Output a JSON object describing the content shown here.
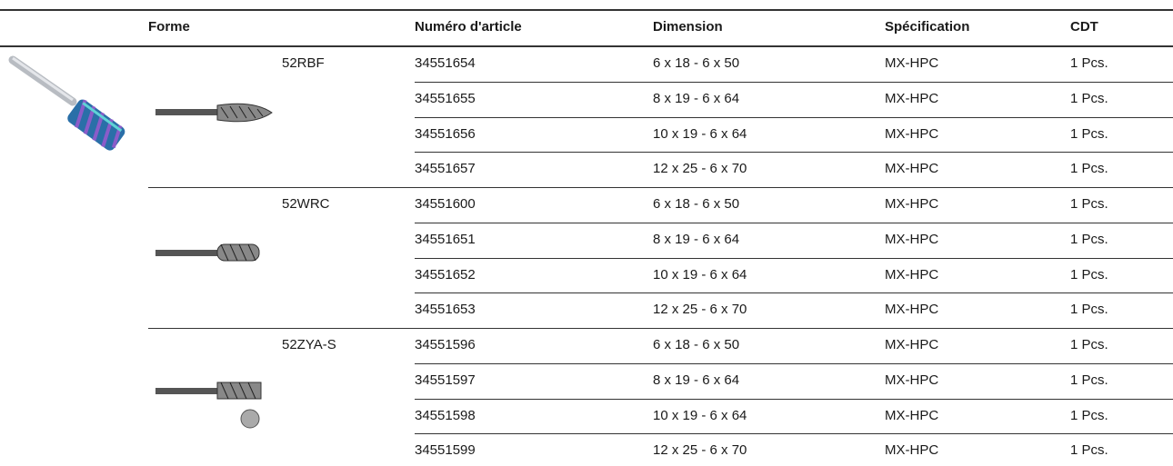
{
  "table": {
    "header": [
      "Forme",
      "Numéro d'article",
      "Dimension",
      "Spécification",
      "CDT"
    ],
    "groups": [
      {
        "code": "52RBF",
        "rows": [
          [
            "34551654",
            "6 x 18 - 6 x 50",
            "MX-HPC",
            "1 Pcs."
          ],
          [
            "34551655",
            "8 x 19 - 6 x 64",
            "MX-HPC",
            "1 Pcs."
          ],
          [
            "34551656",
            "10 x 19 - 6 x 64",
            "MX-HPC",
            "1 Pcs."
          ],
          [
            "34551657",
            "12 x 25 - 6 x 70",
            "MX-HPC",
            "1 Pcs."
          ]
        ]
      },
      {
        "code": "52WRC",
        "rows": [
          [
            "34551600",
            "6 x 18 - 6 x 50",
            "MX-HPC",
            "1 Pcs."
          ],
          [
            "34551651",
            "8 x 19 - 6 x 64",
            "MX-HPC",
            "1 Pcs."
          ],
          [
            "34551652",
            "10 x 19 - 6 x 64",
            "MX-HPC",
            "1 Pcs."
          ],
          [
            "34551653",
            "12 x 25 - 6 x 70",
            "MX-HPC",
            "1 Pcs."
          ]
        ]
      },
      {
        "code": "52ZYA-S",
        "rows": [
          [
            "34551596",
            "6 x 18 - 6 x 50",
            "MX-HPC",
            "1 Pcs."
          ],
          [
            "34551597",
            "8 x 19 - 6 x 64",
            "MX-HPC",
            "1 Pcs."
          ],
          [
            "34551598",
            "10 x 19 - 6 x 64",
            "MX-HPC",
            "1 Pcs."
          ],
          [
            "34551599",
            "12 x 25 - 6 x 70",
            "MX-HPC",
            "1 Pcs."
          ]
        ]
      }
    ]
  }
}
